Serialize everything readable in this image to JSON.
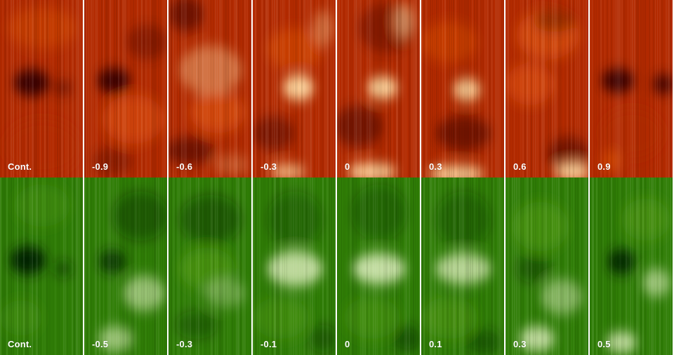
{
  "rows": [
    {
      "palette": "red",
      "colors": {
        "base": "#b32a00",
        "bright": "#ffd9a0",
        "dark": "#3a0500",
        "mid": "#e3580c"
      },
      "labels": [
        "Cont.",
        "-0.9",
        "-0.6",
        "-0.3",
        "0",
        "0.3",
        "0.6",
        "0.9"
      ]
    },
    {
      "palette": "green",
      "colors": {
        "base": "#2f7d06",
        "bright": "#e9f5c9",
        "dark": "#052100",
        "mid": "#5ea31a"
      },
      "labels": [
        "Cont.",
        "-0.5",
        "-0.3",
        "-0.1",
        "0",
        "0.1",
        "0.3",
        "0.5"
      ]
    }
  ]
}
